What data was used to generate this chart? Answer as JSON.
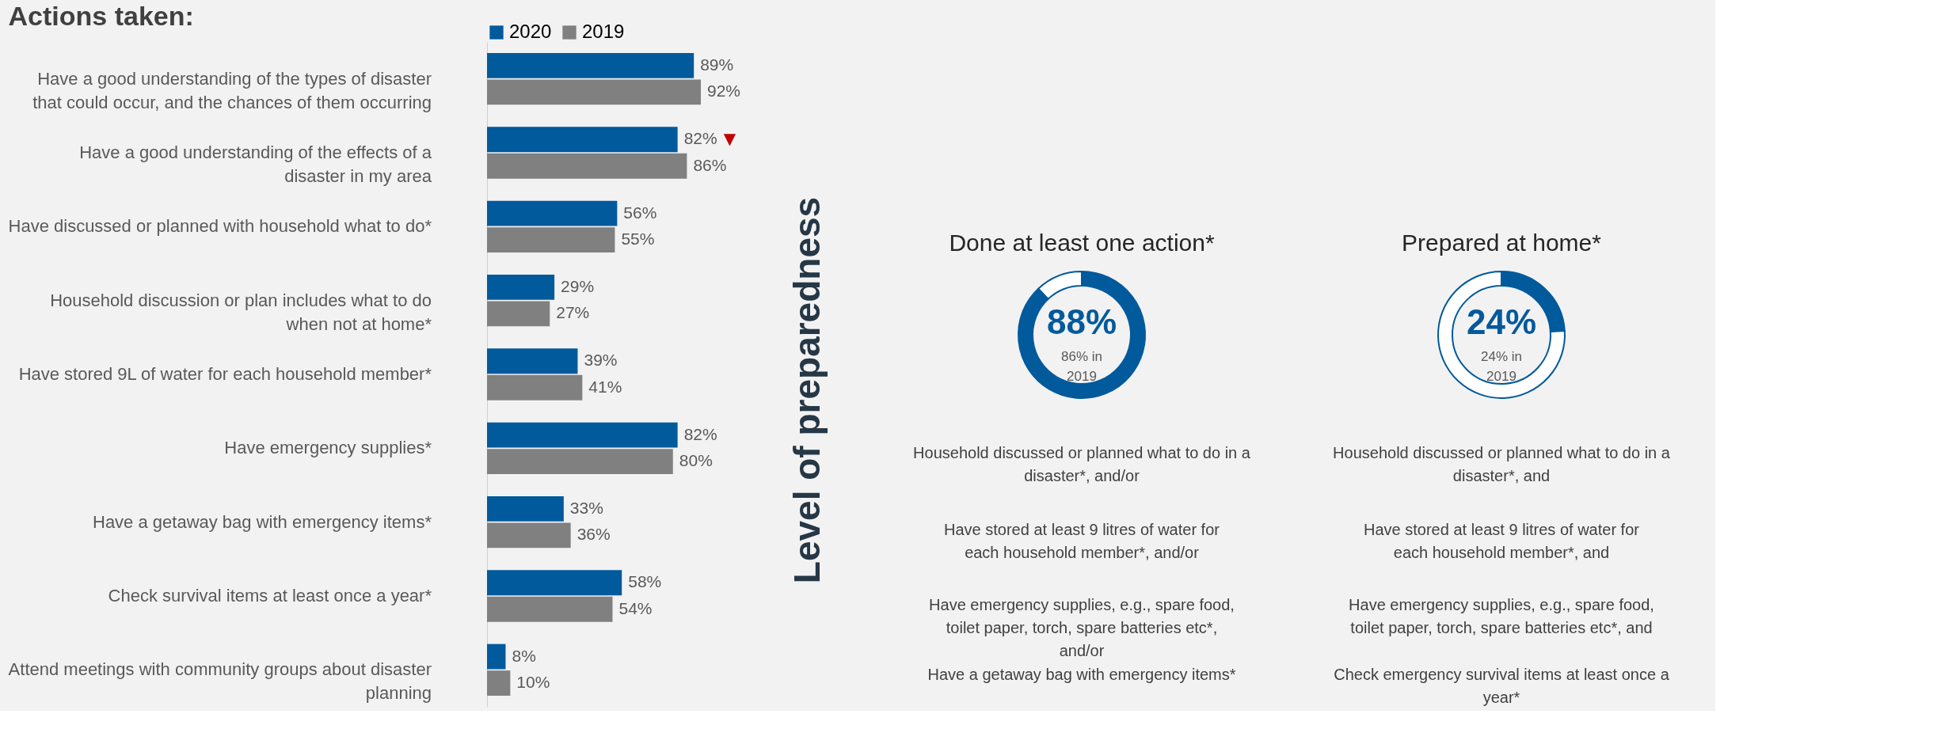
{
  "chart_data": [
    {
      "type": "bar",
      "orientation": "horizontal",
      "title": "Actions taken:",
      "legend": "top",
      "categories": [
        "Have a good understanding of the types of disaster that could occur, and the chances of them occurring",
        "Have a good understanding of the effects of a disaster in my area",
        "Have discussed or planned with household what to do*",
        "Household discussion or plan includes what to do when not at home*",
        "Have stored 9L of water for each household member*",
        "Have emergency supplies*",
        "Have a getaway bag with emergency items*",
        "Check survival items at least once a year*",
        "Attend meetings with community groups about disaster planning"
      ],
      "series": [
        {
          "name": "2020",
          "color": "#005a9c",
          "values": [
            89,
            82,
            56,
            29,
            39,
            82,
            33,
            58,
            8
          ],
          "value_labels": [
            "89%",
            "82%",
            "56%",
            "29%",
            "39%",
            "82%",
            "33%",
            "58%",
            "8%"
          ]
        },
        {
          "name": "2019",
          "color": "#808080",
          "values": [
            92,
            86,
            55,
            27,
            41,
            80,
            36,
            54,
            10
          ],
          "value_labels": [
            "92%",
            "86%",
            "55%",
            "27%",
            "41%",
            "80%",
            "36%",
            "54%",
            "10%"
          ]
        }
      ],
      "annotations": [
        "▼"
      ]
    },
    {
      "type": "other",
      "annotations": [
        "Level of preparedness"
      ]
    },
    {
      "type": "donut",
      "title": "Done at least one action*",
      "categories": [
        null,
        null
      ],
      "values": [
        88,
        12
      ],
      "colors": [
        "#005a9c",
        "#ffffff"
      ],
      "annotations": [
        "88%",
        "86% in 2019",
        "Household discussed or planned what to do in a disaster*, and/or",
        "Have stored at least 9 litres of water for each household member*, and/or",
        "Have emergency supplies, e.g., spare food, toilet paper, torch, spare batteries etc*, and/or",
        "Have a getaway bag with emergency items*"
      ]
    },
    {
      "type": "donut",
      "title": "Prepared at home*",
      "categories": [
        null,
        null
      ],
      "values": [
        24,
        76
      ],
      "colors": [
        "#005a9c",
        "#ffffff"
      ],
      "annotations": [
        "24%",
        "24% in 2019",
        "Household discussed or planned what to do in a disaster*, and",
        "Have stored at least 9 litres of water for each household member*, and",
        "Have emergency supplies, e.g., spare food, toilet paper, torch, spare batteries etc*, and",
        "Check emergency survival items at least once a year*"
      ]
    }
  ]
}
